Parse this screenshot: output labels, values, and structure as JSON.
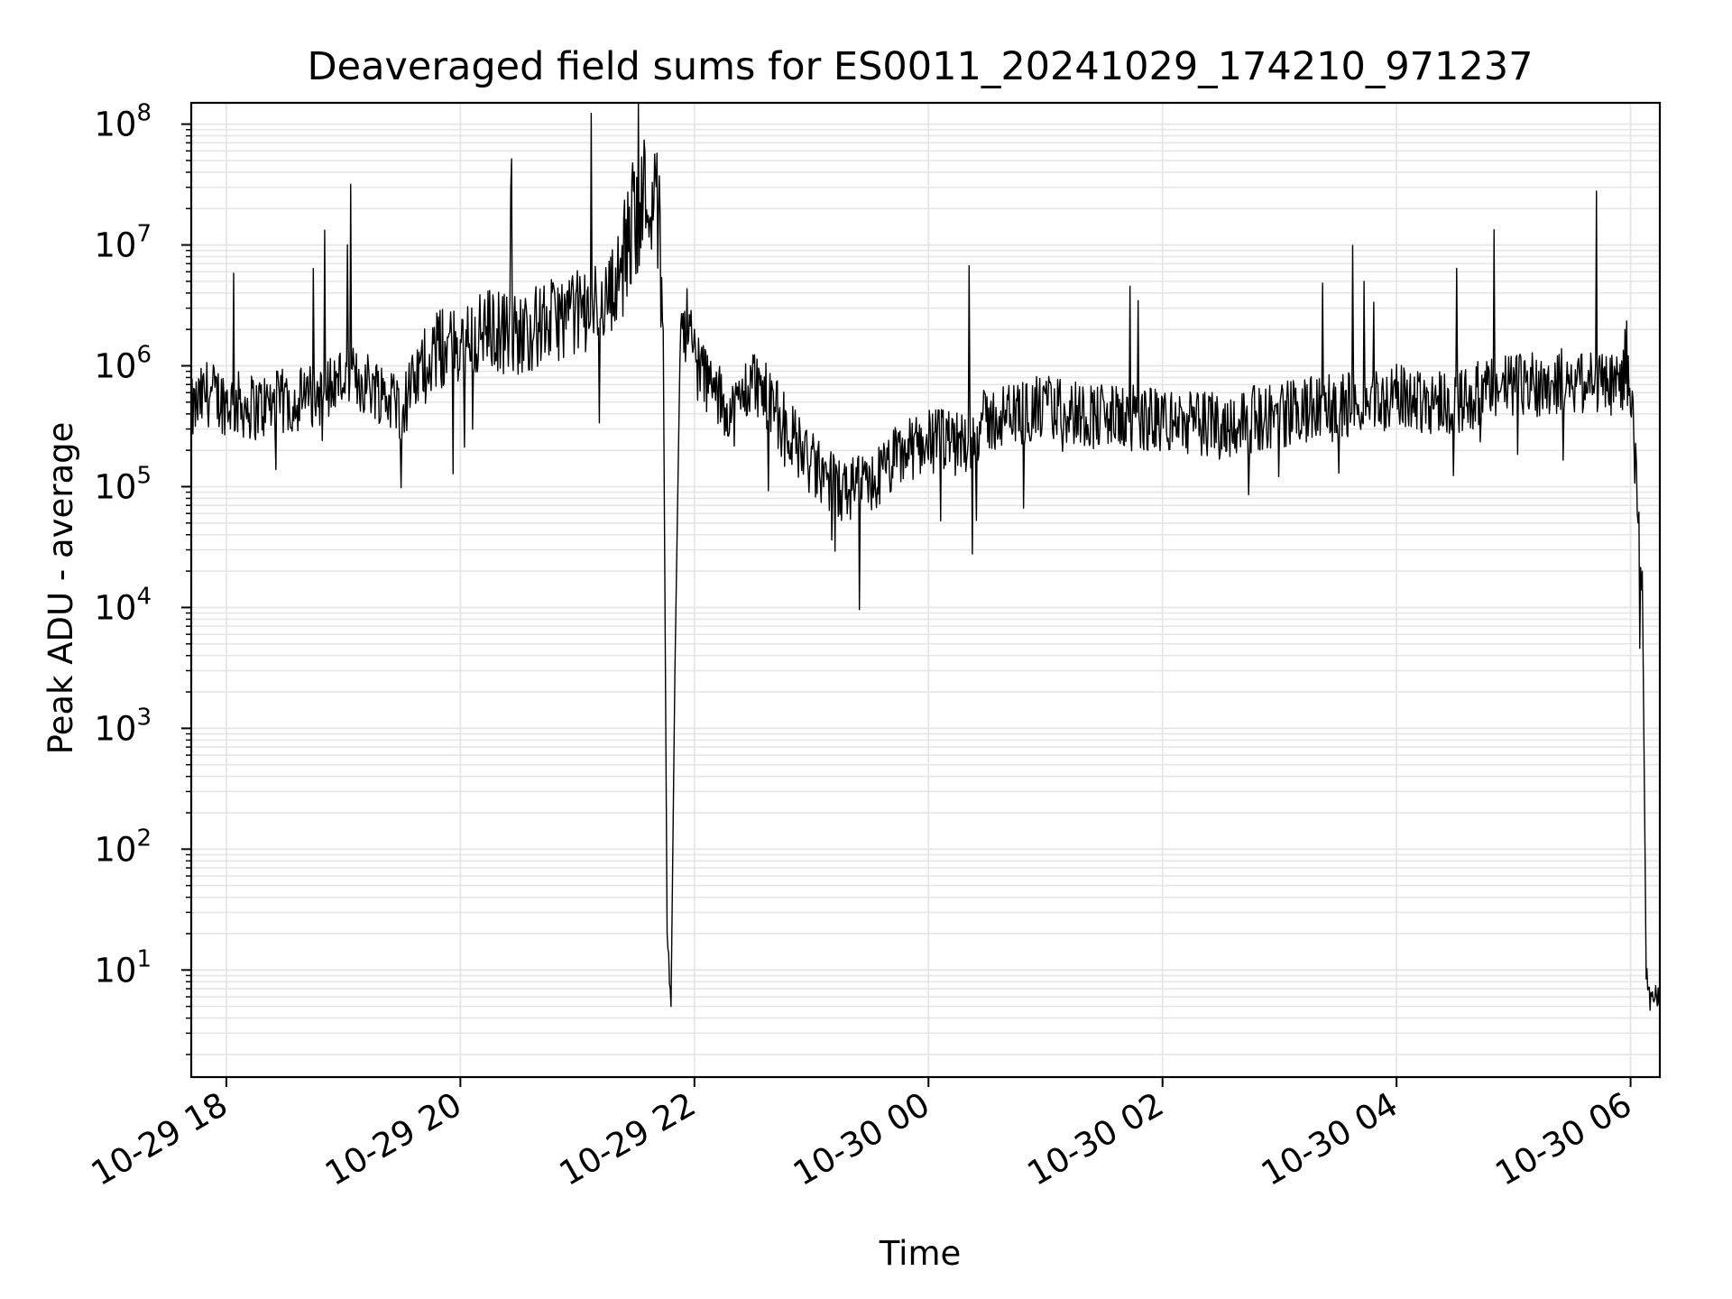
{
  "chart_data": {
    "type": "line",
    "title": "Deaveraged field sums for ES0011_20241029_174210_971237",
    "xlabel": "Time",
    "ylabel": "Peak ADU - average",
    "yscale": "log",
    "ylim": [
      1.3,
      150000000
    ],
    "xlim": [
      "2024-10-29 17:42",
      "2024-10-30 06:15"
    ],
    "grid": true,
    "line_color": "#000000",
    "grid_color": "#e6e6e6",
    "x_ticks": [
      {
        "value": "2024-10-29 18:00",
        "label": "10-29 18"
      },
      {
        "value": "2024-10-29 20:00",
        "label": "10-29 20"
      },
      {
        "value": "2024-10-29 22:00",
        "label": "10-29 22"
      },
      {
        "value": "2024-10-30 00:00",
        "label": "10-30 00"
      },
      {
        "value": "2024-10-30 02:00",
        "label": "10-30 02"
      },
      {
        "value": "2024-10-30 04:00",
        "label": "10-30 04"
      },
      {
        "value": "2024-10-30 06:00",
        "label": "10-30 06"
      }
    ],
    "y_ticks": [
      {
        "value": 10,
        "base": "10",
        "exp": "1"
      },
      {
        "value": 100,
        "base": "10",
        "exp": "2"
      },
      {
        "value": 1000,
        "base": "10",
        "exp": "3"
      },
      {
        "value": 10000,
        "base": "10",
        "exp": "4"
      },
      {
        "value": 100000,
        "base": "10",
        "exp": "5"
      },
      {
        "value": 1000000,
        "base": "10",
        "exp": "6"
      },
      {
        "value": 10000000,
        "base": "10",
        "exp": "7"
      },
      {
        "value": 100000000,
        "base": "10",
        "exp": "8"
      }
    ],
    "series": [
      {
        "x": [
          "2024-10-29 17:42",
          "2024-10-29 17:50",
          "2024-10-29 18:00",
          "2024-10-29 18:15",
          "2024-10-29 18:30",
          "2024-10-29 18:45",
          "2024-10-29 19:00",
          "2024-10-29 19:15",
          "2024-10-29 19:30",
          "2024-10-29 19:45",
          "2024-10-29 20:00",
          "2024-10-29 20:15",
          "2024-10-29 20:30",
          "2024-10-29 20:45",
          "2024-10-29 21:00",
          "2024-10-29 21:15",
          "2024-10-29 21:25",
          "2024-10-29 21:30",
          "2024-10-29 21:38",
          "2024-10-29 21:42",
          "2024-10-29 21:44",
          "2024-10-29 21:46",
          "2024-10-29 21:48",
          "2024-10-29 21:50",
          "2024-10-29 21:53",
          "2024-10-29 21:57",
          "2024-10-29 22:00",
          "2024-10-29 22:10",
          "2024-10-29 22:20",
          "2024-10-29 22:30",
          "2024-10-29 22:45",
          "2024-10-29 23:00",
          "2024-10-29 23:15",
          "2024-10-29 23:30",
          "2024-10-29 23:45",
          "2024-10-30 00:00",
          "2024-10-30 00:15",
          "2024-10-30 00:30",
          "2024-10-30 00:45",
          "2024-10-30 01:00",
          "2024-10-30 01:30",
          "2024-10-30 02:00",
          "2024-10-30 02:30",
          "2024-10-30 03:00",
          "2024-10-30 03:30",
          "2024-10-30 04:00",
          "2024-10-30 04:30",
          "2024-10-30 05:00",
          "2024-10-30 05:30",
          "2024-10-30 05:55",
          "2024-10-30 05:58",
          "2024-10-30 06:00",
          "2024-10-30 06:03",
          "2024-10-30 06:06",
          "2024-10-30 06:08",
          "2024-10-30 06:10",
          "2024-10-30 06:12",
          "2024-10-30 06:15"
        ],
        "values": [
          400000,
          600000,
          500000,
          450000,
          500000,
          550000,
          800000,
          700000,
          450000,
          1300000,
          1500000,
          2000000,
          1800000,
          2300000,
          2800000,
          3500000,
          8000000,
          20000000,
          30000000,
          15000000,
          2000000,
          20,
          5,
          3000,
          3000000,
          2000000,
          1200000,
          600000,
          400000,
          800000,
          350000,
          150000,
          90000,
          100000,
          180000,
          250000,
          220000,
          350000,
          400000,
          450000,
          380000,
          350000,
          320000,
          400000,
          450000,
          550000,
          500000,
          700000,
          750000,
          700000,
          1200000,
          600000,
          100000,
          20000,
          10,
          5,
          6,
          6
        ]
      }
    ]
  }
}
